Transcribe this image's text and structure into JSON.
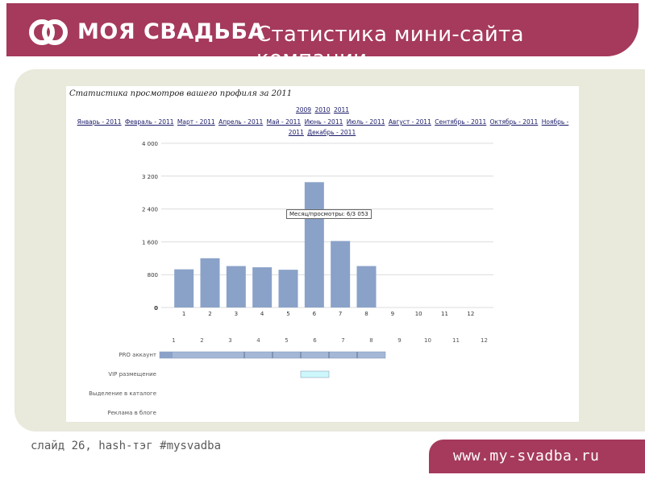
{
  "header": {
    "logo": "МОЯ СВАДЬБА",
    "title": "Статистика мини-сайта компании"
  },
  "card": {
    "title": "Статистика просмотров вашего профиля за 2011",
    "years": [
      "2009",
      "2010",
      "2011"
    ],
    "months": [
      "Январь - 2011",
      "Февраль - 2011",
      "Март - 2011",
      "Апрель - 2011",
      "Май - 2011",
      "Июнь - 2011",
      "Июль - 2011",
      "Август - 2011",
      "Сентябрь - 2011",
      "Октябрь - 2011",
      "Ноябрь - 2011",
      "Декабрь - 2011"
    ],
    "tooltip": "Месяц/просмотры: 6/3 053"
  },
  "chart_data": {
    "type": "bar",
    "categories": [
      "1",
      "2",
      "3",
      "4",
      "5",
      "6",
      "7",
      "8",
      "9",
      "10",
      "11",
      "12"
    ],
    "values": [
      930,
      1200,
      1010,
      980,
      920,
      3053,
      1620,
      1010,
      0,
      0,
      0,
      0
    ],
    "ylim": [
      0,
      4000
    ],
    "yticks": [
      0,
      800,
      1600,
      2400,
      3200,
      4000
    ],
    "ytick_labels": [
      "0",
      "800",
      "1 600",
      "2 400",
      "3 200",
      "4 000"
    ],
    "bar_color": "#8aa2c8",
    "grid": true,
    "title": "",
    "xlabel": "",
    "ylabel": ""
  },
  "timeline": {
    "months": [
      "1",
      "2",
      "3",
      "4",
      "5",
      "6",
      "7",
      "8",
      "9",
      "10",
      "11",
      "12"
    ],
    "rows": [
      {
        "label": "PRO аккаунт",
        "start": 1,
        "end": 8,
        "color": "#a4b8d6"
      },
      {
        "label": "VIP размещение",
        "start": 6,
        "end": 6,
        "color": "#ccf8fb"
      },
      {
        "label": "Выделение в каталоге"
      },
      {
        "label": "Реклама в блоге"
      }
    ]
  },
  "footer": {
    "slide": "слайд 26, hash-тэг #mysvadba",
    "url": "www.my-svadba.ru"
  },
  "colors": {
    "brand": "#a53a5c",
    "panel": "#e9e9dc"
  }
}
